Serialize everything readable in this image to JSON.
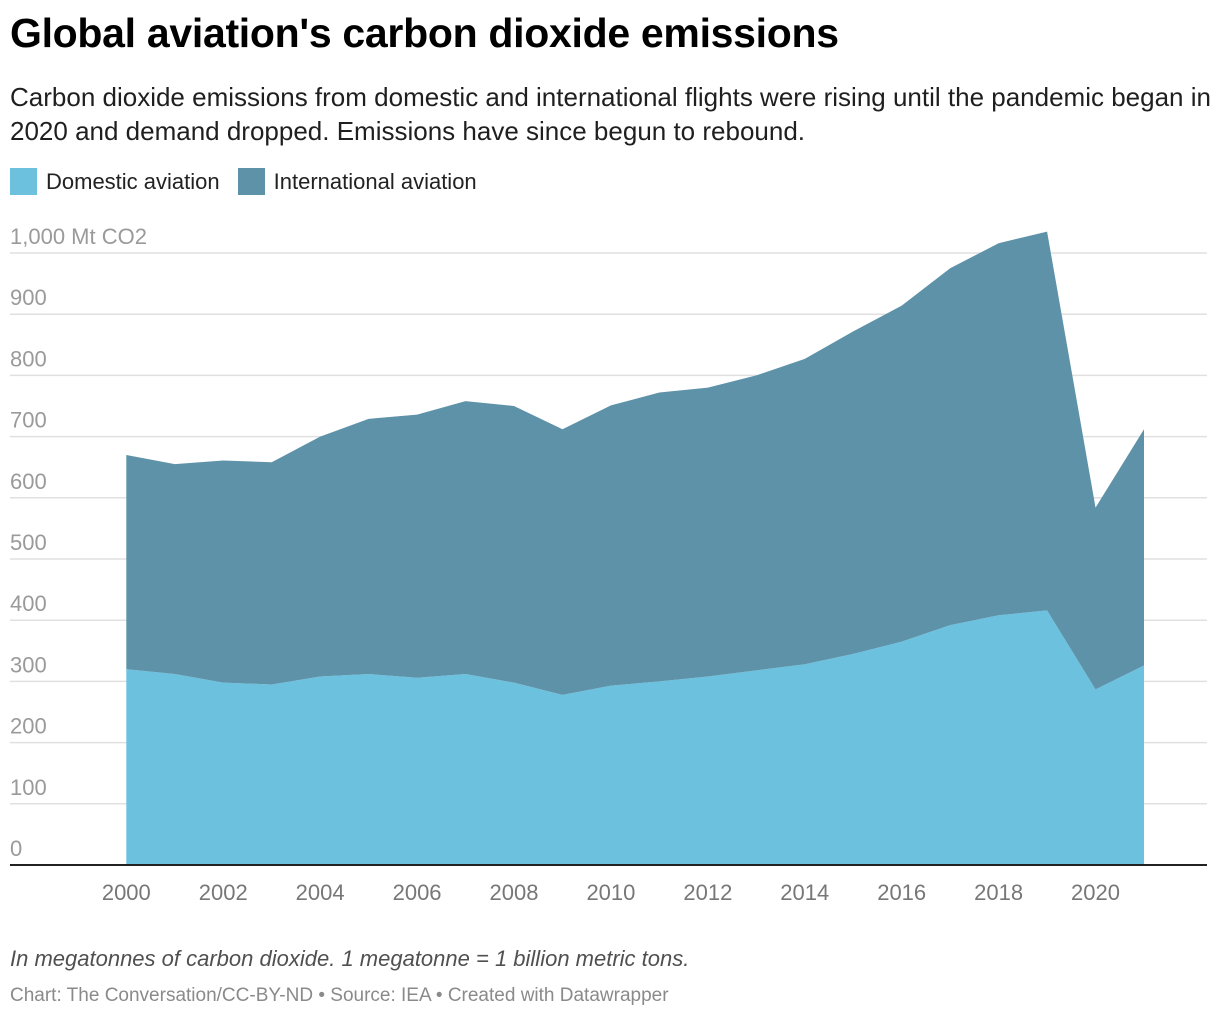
{
  "title": "Global aviation's carbon dioxide emissions",
  "subtitle": "Carbon dioxide emissions from domestic and international flights were rising until the pandemic began in 2020 and demand dropped. Emissions have since begun to rebound.",
  "note": "In megatonnes of carbon dioxide. 1 megatonne = 1 billion metric tons.",
  "credit": "Chart: The Conversation/CC-BY-ND • Source: IEA • Created with Datawrapper",
  "colors": {
    "domestic": "#6cc1de",
    "international": "#5e92a8",
    "gridline": "#e0e0e0",
    "axis_label": "#9a9a9a",
    "baseline": "#222222"
  },
  "chart_data": {
    "type": "area",
    "stacked": true,
    "ylim": [
      0,
      1000
    ],
    "yticks": [
      0,
      100,
      200,
      300,
      400,
      500,
      600,
      700,
      800,
      900,
      1000
    ],
    "ytick_labels": [
      "0",
      "100",
      "200",
      "300",
      "400",
      "500",
      "600",
      "700",
      "800",
      "900",
      "1,000 Mt CO2"
    ],
    "xlim": [
      1997.6,
      2022.3
    ],
    "xticks": [
      2000,
      2002,
      2004,
      2006,
      2008,
      2010,
      2012,
      2014,
      2016,
      2018,
      2020
    ],
    "x": [
      2000,
      2001,
      2002,
      2003,
      2004,
      2005,
      2006,
      2007,
      2008,
      2009,
      2010,
      2011,
      2012,
      2013,
      2014,
      2015,
      2016,
      2017,
      2018,
      2019,
      2020,
      2021
    ],
    "legend_position": "top-left",
    "grid": true,
    "series": [
      {
        "name": "Domestic aviation",
        "values": [
          320,
          312,
          298,
          295,
          308,
          312,
          306,
          312,
          298,
          278,
          293,
          300,
          308,
          318,
          328,
          345,
          365,
          392,
          408,
          416,
          287,
          326
        ]
      },
      {
        "name": "International aviation",
        "values": [
          350,
          343,
          363,
          363,
          392,
          417,
          430,
          446,
          452,
          434,
          458,
          472,
          472,
          482,
          499,
          527,
          549,
          583,
          608,
          619,
          297,
          386
        ]
      }
    ]
  }
}
